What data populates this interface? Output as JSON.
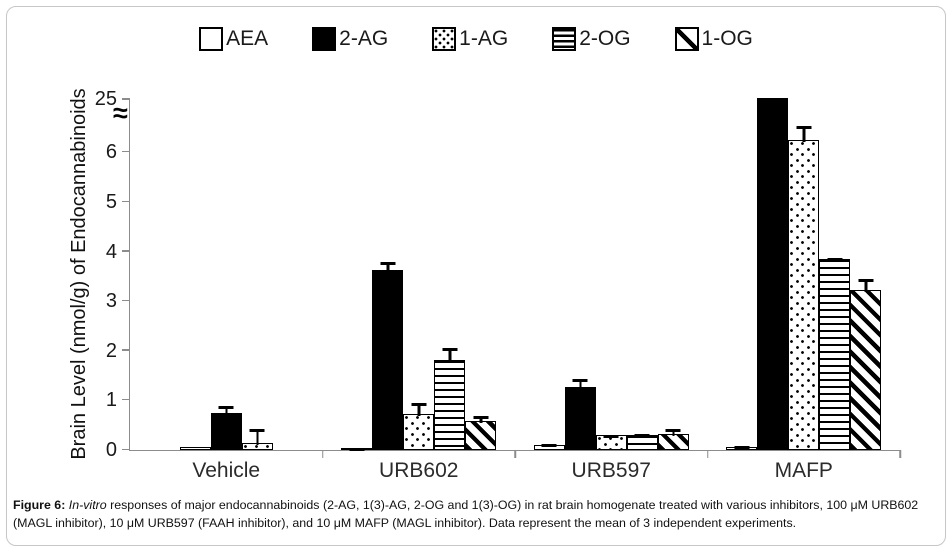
{
  "chart_data": {
    "type": "bar",
    "title": "",
    "xlabel": "",
    "ylabel": "Brain Level (nmol/g) of Endocannabinoids",
    "categories": [
      "Vehicle",
      "URB602",
      "URB597",
      "MAFP"
    ],
    "y_ticks": [
      0,
      1,
      2,
      3,
      4,
      5,
      6
    ],
    "y_break_top_tick": 25,
    "axis_break": {
      "between": [
        6,
        25
      ],
      "symbol": "≈"
    },
    "ylim": [
      0,
      25
    ],
    "grid": false,
    "legend_position": "top",
    "series": [
      {
        "name": "AEA",
        "pattern": "plain",
        "values": [
          0.07,
          0.04,
          0.1,
          0.07
        ],
        "errors": [
          0,
          0.02,
          0.05,
          0.03
        ]
      },
      {
        "name": "2-AG",
        "pattern": "solid",
        "values": [
          0.74,
          3.62,
          1.28,
          25
        ],
        "errors": [
          0.17,
          0.2,
          0.18,
          0
        ]
      },
      {
        "name": "1-AG",
        "pattern": "dots",
        "values": [
          0.14,
          0.72,
          0.3,
          6.25
        ],
        "errors": [
          0.3,
          0.25,
          0.03,
          0.3
        ]
      },
      {
        "name": "2-OG",
        "pattern": "hlines",
        "values": [
          null,
          1.82,
          0.31,
          3.85
        ],
        "errors": [
          null,
          0.25,
          0.03,
          0.05
        ]
      },
      {
        "name": "1-OG",
        "pattern": "diag",
        "values": [
          null,
          0.58,
          0.33,
          3.22
        ],
        "errors": [
          null,
          0.13,
          0.12,
          0.25
        ]
      }
    ]
  },
  "caption": {
    "figure_label": "Figure 6:",
    "italic_text": "In-vitro",
    "text": " responses of major endocannabinoids (2-AG, 1(3)-AG, 2-OG and 1(3)-OG) in rat brain homogenate treated with various inhibitors, 100 μM URB602 (MAGL inhibitor), 10 μM URB597 (FAAH inhibitor), and 10 μM MAFP (MAGL inhibitor). Data represent the mean of 3 independent experiments."
  },
  "colors": {
    "bar_black": "#000000",
    "bar_white": "#ffffff",
    "axis_line": "#8c8c8c",
    "text": "#1a1a1a",
    "frame_border": "#c6c6c6"
  }
}
